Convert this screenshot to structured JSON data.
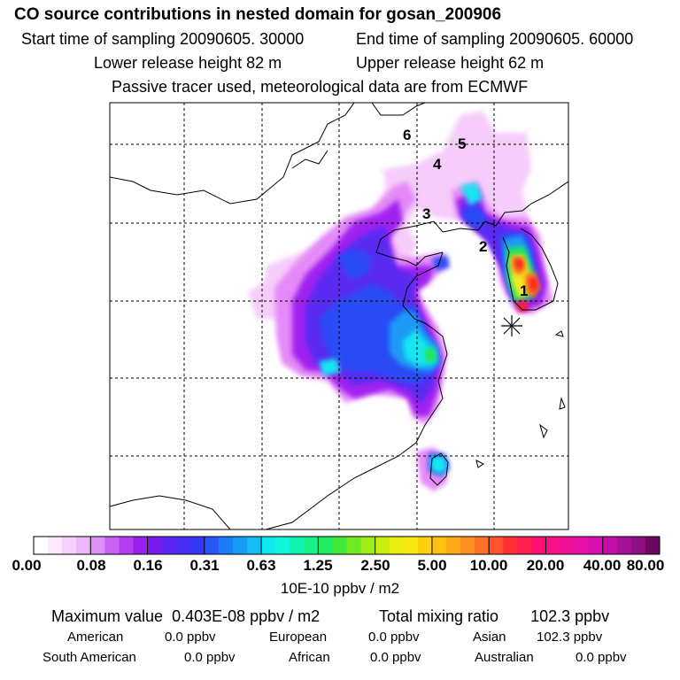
{
  "header": {
    "title": "CO  source contributions in nested domain for gosan_200906",
    "start_label": "Start time of sampling 20090605. 30000",
    "end_label": "End time of sampling 20090605. 60000",
    "lower_label": "Lower release height   82 m",
    "upper_label": "Upper release height   62 m",
    "tracer_note": "Passive tracer used, meteorological data are from ECMWF"
  },
  "map": {
    "trajectory_markers": [
      "1",
      "2",
      "3",
      "4",
      "5",
      "6"
    ],
    "site_symbol": "asterisk",
    "colors": {
      "pale": "#f6ccfb",
      "light_magenta": "#e58af8",
      "violet": "#a020f0",
      "blue_purple": "#5a2bf2",
      "blue": "#2c4cf6",
      "sky": "#1a9bf6",
      "cyan": "#14e6f0",
      "green": "#22e65a",
      "yellow": "#f4ec20",
      "orange": "#ff8a1a",
      "red": "#ff2020",
      "magenta_red": "#e0128c"
    }
  },
  "colorbar": {
    "labels": [
      "0.00",
      "0.08",
      "0.16",
      "0.31",
      "0.63",
      "1.25",
      "2.50",
      "5.00",
      "10.00",
      "20.00",
      "40.00",
      "80.00"
    ],
    "swatches": [
      "#ffffff",
      "#fbe8fd",
      "#f5d2fb",
      "#eab8f7",
      "#dd90f5",
      "#c860f2",
      "#b240f0",
      "#9a20ee",
      "#7a1cf0",
      "#6024f3",
      "#4a2ef5",
      "#3438f7",
      "#2658f6",
      "#1a7cf6",
      "#149cf6",
      "#12bcf4",
      "#10e8f0",
      "#10f4d8",
      "#10f2b0",
      "#18f088",
      "#20ec60",
      "#40e838",
      "#70ea20",
      "#a0ec18",
      "#c8ee10",
      "#e8ee10",
      "#f8e810",
      "#ffd010",
      "#ffc010",
      "#ffa818",
      "#ff9020",
      "#ff7028",
      "#ff5030",
      "#ff3038",
      "#ff2050",
      "#ff1070",
      "#f81088",
      "#f01098",
      "#e810a8",
      "#d810b0",
      "#c410a8",
      "#a81098",
      "#8c1080",
      "#6c0860"
    ],
    "unit": "10E-10 ppbv / m2"
  },
  "summary": {
    "max_label": "Maximum value",
    "max_value": "0.403E-08 ppbv / m2",
    "total_label": "Total mixing ratio",
    "total_value": "102.3 ppbv",
    "regions": [
      {
        "name": "American",
        "value": "0.0 ppbv"
      },
      {
        "name": "European",
        "value": "0.0 ppbv"
      },
      {
        "name": "Asian",
        "value": "102.3 ppbv"
      },
      {
        "name": "South American",
        "value": "0.0 ppbv"
      },
      {
        "name": "African",
        "value": "0.0 ppbv"
      },
      {
        "name": "Australian",
        "value": "0.0 ppbv"
      }
    ]
  }
}
